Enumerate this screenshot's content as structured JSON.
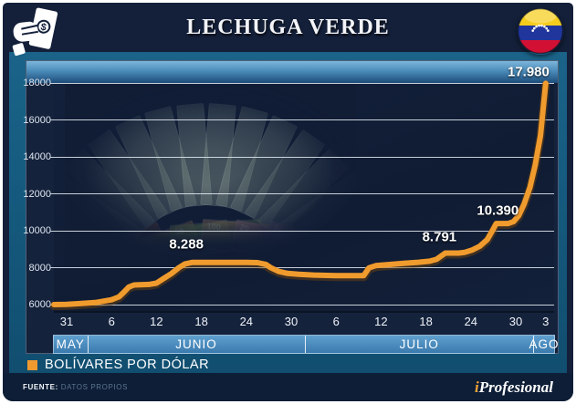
{
  "header": {
    "title": "LECHUGA VERDE"
  },
  "icons": {
    "top_left": "hand-holding-dollar-banknote",
    "top_right": "venezuela-flag-round-badge",
    "flag_colors": {
      "yellow": "#f5cd1b",
      "blue": "#20369c",
      "red": "#d21034",
      "stars": "#ffffff"
    }
  },
  "legend": {
    "label": "BOLÍVARES POR DÓLAR",
    "swatch_color": "#f0992e"
  },
  "footer": {
    "source_label": "FUENTE:",
    "source_value": "DATOS PROPIOS",
    "brand_i": "i",
    "brand_rest": "Profesional"
  },
  "chart_data": {
    "type": "line",
    "title": "LECHUGA VERDE",
    "series_name": "BOLÍVARES POR DÓLAR",
    "line_color": "#f09b2e",
    "grid": true,
    "ylim": [
      6000,
      18000
    ],
    "x_range_days": [
      -1.7,
      64
    ],
    "x_unit": "days after May 31",
    "decor_description": "faded fan of US 20-dollar bills and Venezuelan bolívar notes behind upper-left of plot",
    "y_ticks": [
      {
        "label": "18000",
        "value": 18000
      },
      {
        "label": "16000",
        "value": 16000
      },
      {
        "label": "14000",
        "value": 14000
      },
      {
        "label": "12000",
        "value": 12000
      },
      {
        "label": "10000",
        "value": 10000
      },
      {
        "label": "8000",
        "value": 8000
      },
      {
        "label": "6000",
        "value": 6000
      }
    ],
    "x_ticks": [
      {
        "label": "31",
        "day": 0
      },
      {
        "label": "6",
        "day": 6
      },
      {
        "label": "12",
        "day": 12
      },
      {
        "label": "18",
        "day": 18
      },
      {
        "label": "24",
        "day": 24
      },
      {
        "label": "30",
        "day": 30
      },
      {
        "label": "6",
        "day": 36
      },
      {
        "label": "12",
        "day": 42
      },
      {
        "label": "18",
        "day": 48
      },
      {
        "label": "24",
        "day": 54
      },
      {
        "label": "30",
        "day": 60
      },
      {
        "label": "3",
        "day": 64
      }
    ],
    "months": [
      {
        "label": "MAY",
        "width_pct": 6.7
      },
      {
        "label": "JUNIO",
        "width_pct": 43.5
      },
      {
        "label": "JULIO",
        "width_pct": 45.8
      },
      {
        "label": "AGO",
        "width_pct": 4.0
      }
    ],
    "points": [
      [
        -1.7,
        6000
      ],
      [
        0,
        6010
      ],
      [
        2,
        6060
      ],
      [
        4,
        6120
      ],
      [
        6,
        6260
      ],
      [
        7,
        6420
      ],
      [
        7.6,
        6650
      ],
      [
        8.3,
        6950
      ],
      [
        9,
        7060
      ],
      [
        11,
        7090
      ],
      [
        12,
        7160
      ],
      [
        13,
        7420
      ],
      [
        14,
        7680
      ],
      [
        15,
        8000
      ],
      [
        15.8,
        8200
      ],
      [
        16.8,
        8288
      ],
      [
        24,
        8288
      ],
      [
        25.5,
        8270
      ],
      [
        26.6,
        8180
      ],
      [
        27.3,
        7990
      ],
      [
        28.3,
        7800
      ],
      [
        29.5,
        7690
      ],
      [
        31,
        7640
      ],
      [
        33,
        7600
      ],
      [
        36,
        7570
      ],
      [
        39.7,
        7570
      ],
      [
        40.4,
        7990
      ],
      [
        41.3,
        8110
      ],
      [
        43,
        8170
      ],
      [
        45,
        8230
      ],
      [
        47,
        8290
      ],
      [
        48.5,
        8350
      ],
      [
        49.4,
        8450
      ],
      [
        50,
        8620
      ],
      [
        50.6,
        8791
      ],
      [
        52.4,
        8791
      ],
      [
        53.2,
        8830
      ],
      [
        54.2,
        8960
      ],
      [
        55.2,
        9160
      ],
      [
        56.2,
        9520
      ],
      [
        56.9,
        10020
      ],
      [
        57.4,
        10390
      ],
      [
        59,
        10390
      ],
      [
        59.7,
        10490
      ],
      [
        60.4,
        10820
      ],
      [
        61.1,
        11420
      ],
      [
        61.9,
        12350
      ],
      [
        62.6,
        13550
      ],
      [
        63.3,
        15150
      ],
      [
        64,
        17980
      ]
    ],
    "annotations": [
      {
        "text": "8.288",
        "day": 16.0,
        "value": 8288,
        "dy": -20
      },
      {
        "text": "8.791",
        "day": 49.8,
        "value": 8791,
        "dy": -17
      },
      {
        "text": "10.390",
        "day": 57.6,
        "value": 10390,
        "dy": -14
      },
      {
        "text": "17.980",
        "day": 61.7,
        "value": 17980,
        "dy": -12
      }
    ]
  }
}
